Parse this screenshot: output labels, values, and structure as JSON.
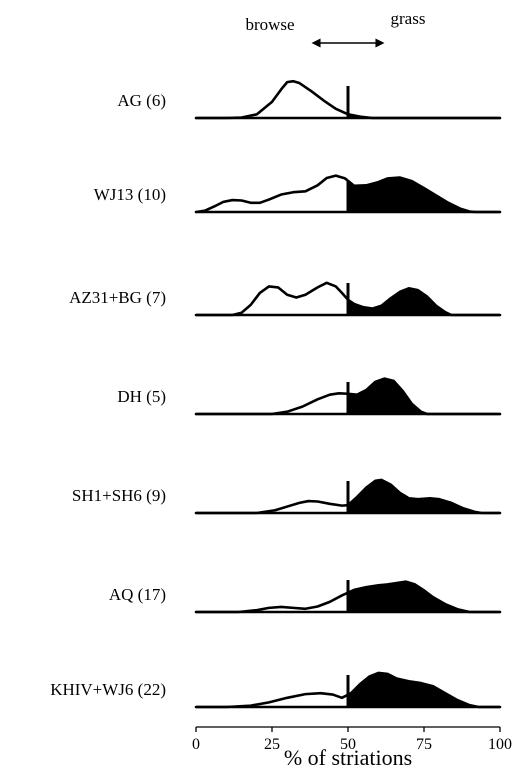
{
  "chart_data": {
    "type": "area",
    "title": "",
    "xlabel": "% of striations",
    "ylabel": "",
    "xlim": [
      0,
      100
    ],
    "x_ticks": [
      0,
      25,
      50,
      75,
      100
    ],
    "divider_x": 50,
    "annotation": {
      "left_label": "browse",
      "right_label": "grass",
      "arrow_from": 38,
      "arrow_to": 62
    },
    "fill_left": "#ffffff",
    "fill_right": "#000000",
    "line_color": "#000000",
    "series": [
      {
        "name": "AG (6)",
        "points": [
          [
            0,
            0
          ],
          [
            10,
            0
          ],
          [
            15,
            0.01
          ],
          [
            20,
            0.08
          ],
          [
            25,
            0.35
          ],
          [
            28,
            0.62
          ],
          [
            30,
            0.78
          ],
          [
            32,
            0.8
          ],
          [
            34,
            0.76
          ],
          [
            38,
            0.58
          ],
          [
            42,
            0.38
          ],
          [
            46,
            0.2
          ],
          [
            50,
            0.08
          ],
          [
            54,
            0.03
          ],
          [
            58,
            0
          ],
          [
            65,
            0
          ],
          [
            100,
            0
          ]
        ]
      },
      {
        "name": "WJ13 (10)",
        "points": [
          [
            0,
            0
          ],
          [
            3,
            0.03
          ],
          [
            6,
            0.12
          ],
          [
            9,
            0.22
          ],
          [
            12,
            0.26
          ],
          [
            15,
            0.25
          ],
          [
            18,
            0.2
          ],
          [
            21,
            0.2
          ],
          [
            24,
            0.27
          ],
          [
            28,
            0.38
          ],
          [
            32,
            0.43
          ],
          [
            36,
            0.45
          ],
          [
            40,
            0.58
          ],
          [
            43,
            0.74
          ],
          [
            46,
            0.79
          ],
          [
            49,
            0.73
          ],
          [
            52,
            0.57
          ],
          [
            56,
            0.58
          ],
          [
            60,
            0.65
          ],
          [
            63,
            0.73
          ],
          [
            67,
            0.75
          ],
          [
            71,
            0.67
          ],
          [
            75,
            0.52
          ],
          [
            79,
            0.36
          ],
          [
            83,
            0.2
          ],
          [
            87,
            0.07
          ],
          [
            90,
            0.01
          ],
          [
            92,
            0
          ],
          [
            100,
            0
          ]
        ]
      },
      {
        "name": "AZ31+BG (7)",
        "points": [
          [
            0,
            0
          ],
          [
            12,
            0
          ],
          [
            15,
            0.05
          ],
          [
            18,
            0.22
          ],
          [
            21,
            0.48
          ],
          [
            24,
            0.62
          ],
          [
            27,
            0.6
          ],
          [
            30,
            0.44
          ],
          [
            33,
            0.38
          ],
          [
            36,
            0.44
          ],
          [
            40,
            0.6
          ],
          [
            43,
            0.7
          ],
          [
            46,
            0.62
          ],
          [
            48,
            0.48
          ],
          [
            50,
            0.33
          ],
          [
            52,
            0.24
          ],
          [
            55,
            0.17
          ],
          [
            58,
            0.14
          ],
          [
            61,
            0.2
          ],
          [
            64,
            0.36
          ],
          [
            67,
            0.5
          ],
          [
            70,
            0.58
          ],
          [
            73,
            0.54
          ],
          [
            76,
            0.4
          ],
          [
            79,
            0.2
          ],
          [
            82,
            0.06
          ],
          [
            84,
            0
          ],
          [
            100,
            0
          ]
        ]
      },
      {
        "name": "DH (5)",
        "points": [
          [
            0,
            0
          ],
          [
            25,
            0
          ],
          [
            30,
            0.05
          ],
          [
            35,
            0.16
          ],
          [
            40,
            0.32
          ],
          [
            44,
            0.42
          ],
          [
            47,
            0.45
          ],
          [
            50,
            0.44
          ],
          [
            53,
            0.42
          ],
          [
            56,
            0.52
          ],
          [
            59,
            0.7
          ],
          [
            62,
            0.77
          ],
          [
            65,
            0.72
          ],
          [
            68,
            0.5
          ],
          [
            71,
            0.22
          ],
          [
            74,
            0.05
          ],
          [
            76,
            0
          ],
          [
            100,
            0
          ]
        ]
      },
      {
        "name": "SH1+SH6 (9)",
        "points": [
          [
            0,
            0
          ],
          [
            20,
            0
          ],
          [
            26,
            0.06
          ],
          [
            30,
            0.14
          ],
          [
            34,
            0.22
          ],
          [
            37,
            0.26
          ],
          [
            40,
            0.25
          ],
          [
            44,
            0.2
          ],
          [
            48,
            0.16
          ],
          [
            50,
            0.17
          ],
          [
            53,
            0.35
          ],
          [
            56,
            0.55
          ],
          [
            59,
            0.7
          ],
          [
            61,
            0.72
          ],
          [
            64,
            0.62
          ],
          [
            67,
            0.44
          ],
          [
            70,
            0.32
          ],
          [
            73,
            0.3
          ],
          [
            77,
            0.32
          ],
          [
            80,
            0.3
          ],
          [
            84,
            0.22
          ],
          [
            88,
            0.1
          ],
          [
            92,
            0.02
          ],
          [
            94,
            0
          ],
          [
            100,
            0
          ]
        ]
      },
      {
        "name": "AQ (17)",
        "points": [
          [
            0,
            0
          ],
          [
            14,
            0
          ],
          [
            20,
            0.04
          ],
          [
            24,
            0.09
          ],
          [
            28,
            0.11
          ],
          [
            32,
            0.09
          ],
          [
            36,
            0.07
          ],
          [
            40,
            0.12
          ],
          [
            44,
            0.22
          ],
          [
            48,
            0.36
          ],
          [
            52,
            0.48
          ],
          [
            56,
            0.54
          ],
          [
            60,
            0.58
          ],
          [
            63,
            0.6
          ],
          [
            66,
            0.63
          ],
          [
            69,
            0.66
          ],
          [
            72,
            0.6
          ],
          [
            75,
            0.47
          ],
          [
            78,
            0.32
          ],
          [
            82,
            0.17
          ],
          [
            86,
            0.06
          ],
          [
            90,
            0
          ],
          [
            100,
            0
          ]
        ]
      },
      {
        "name": "KHIV+WJ6 (22)",
        "points": [
          [
            0,
            0
          ],
          [
            10,
            0
          ],
          [
            18,
            0.03
          ],
          [
            24,
            0.1
          ],
          [
            30,
            0.2
          ],
          [
            36,
            0.28
          ],
          [
            41,
            0.3
          ],
          [
            45,
            0.27
          ],
          [
            48,
            0.2
          ],
          [
            51,
            0.3
          ],
          [
            54,
            0.5
          ],
          [
            57,
            0.66
          ],
          [
            60,
            0.74
          ],
          [
            63,
            0.72
          ],
          [
            66,
            0.62
          ],
          [
            70,
            0.56
          ],
          [
            74,
            0.52
          ],
          [
            78,
            0.45
          ],
          [
            82,
            0.3
          ],
          [
            86,
            0.15
          ],
          [
            90,
            0.04
          ],
          [
            93,
            0
          ],
          [
            100,
            0
          ]
        ]
      }
    ]
  }
}
